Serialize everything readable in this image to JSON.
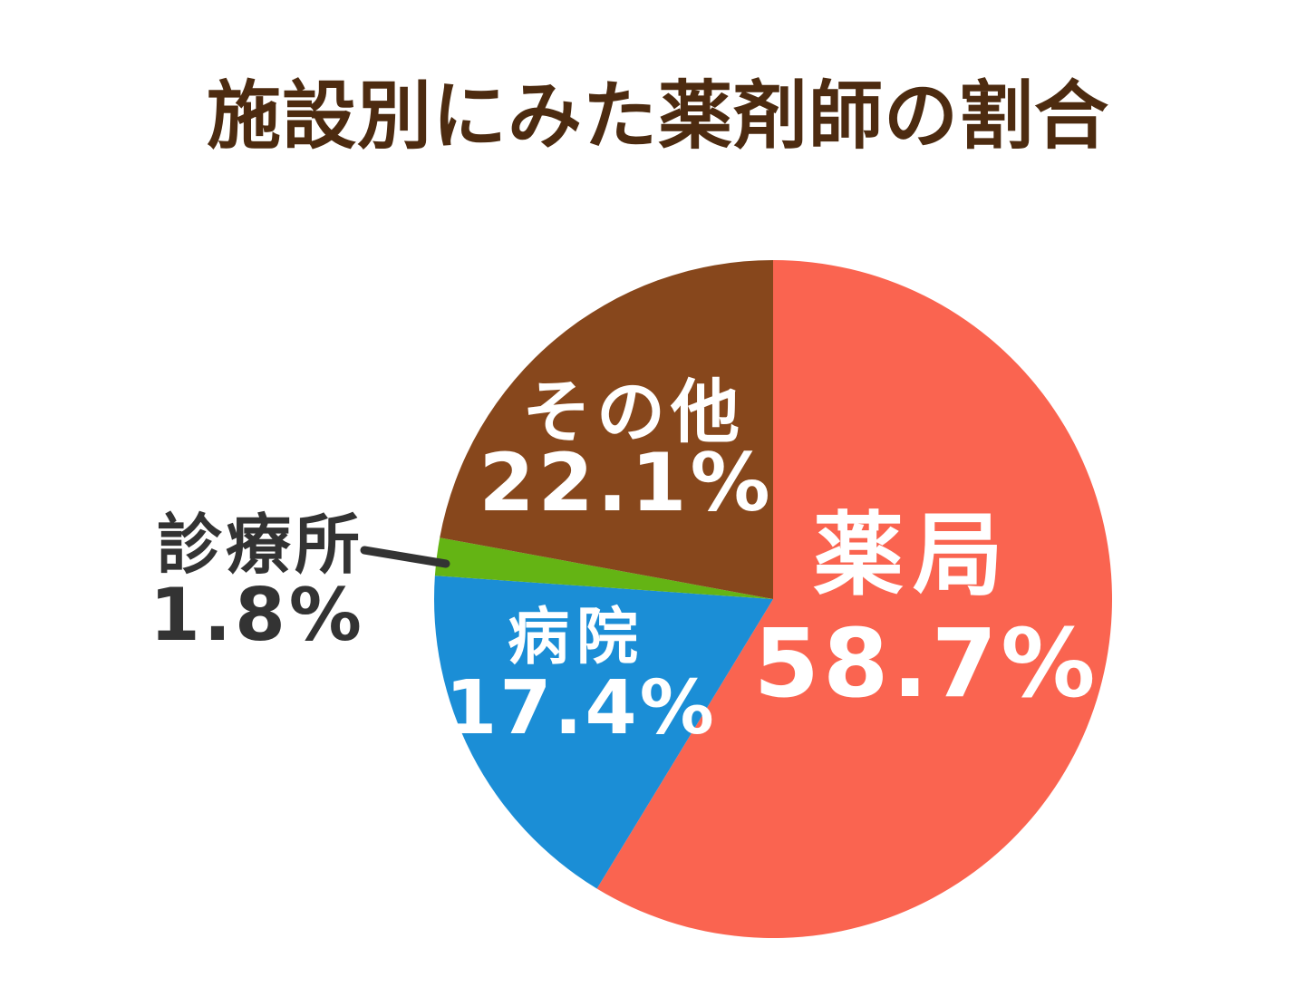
{
  "title": "施設別にみた薬剤師の割合",
  "colors": {
    "background": "#FFFFFF",
    "title_text": "#4D2B10",
    "outside_label_text": "#333333",
    "inside_label_text": "#FFFFFF",
    "leader_line": "#333333"
  },
  "chart_data": {
    "type": "pie",
    "title": "施設別にみた薬剤師の割合",
    "start_angle_deg": 0,
    "direction": "clockwise",
    "legend": "none",
    "slices": [
      {
        "id": "yakkyoku",
        "label": "薬局",
        "value": 58.7,
        "pct_label": "58.7%",
        "color": "#FA6450",
        "label_placement": "inside"
      },
      {
        "id": "byoin",
        "label": "病院",
        "value": 17.4,
        "pct_label": "17.4%",
        "color": "#1B8ED6",
        "label_placement": "inside"
      },
      {
        "id": "shinryojo",
        "label": "診療所",
        "value": 1.8,
        "pct_label": "1.8%",
        "color": "#64B414",
        "label_placement": "outside"
      },
      {
        "id": "sonota",
        "label": "その他",
        "value": 22.1,
        "pct_label": "22.1%",
        "color": "#87471C",
        "label_placement": "inside"
      }
    ]
  }
}
